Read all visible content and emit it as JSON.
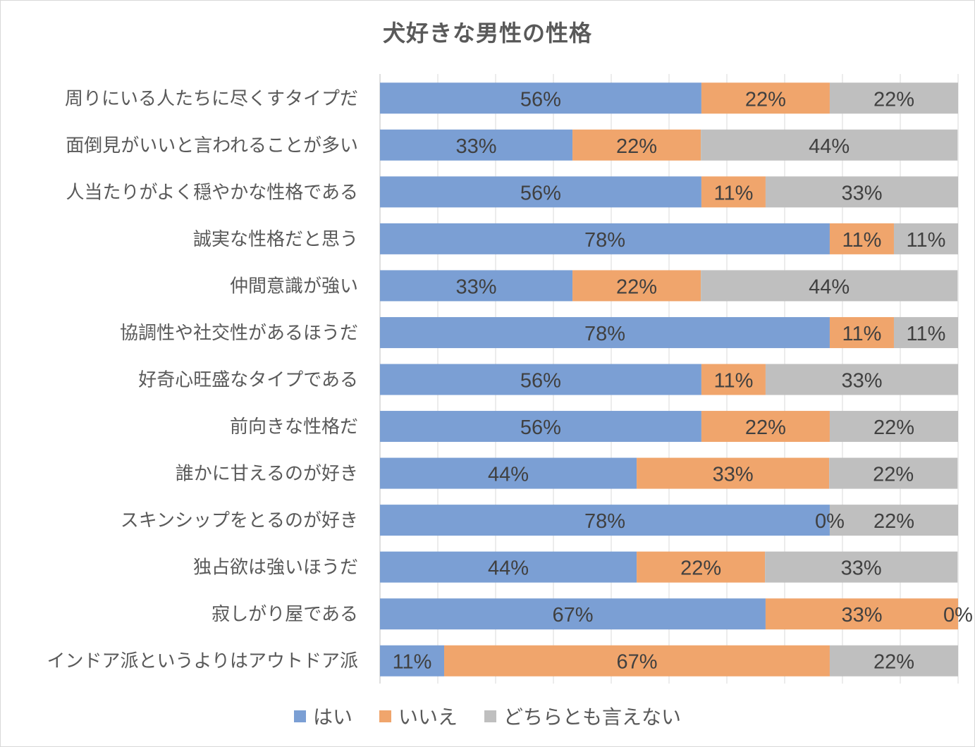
{
  "chart_data": {
    "type": "bar",
    "orientation": "horizontal",
    "stacked": "percent",
    "title": "犬好きな男性の性格",
    "xlabel": "",
    "ylabel": "",
    "xlim": [
      0,
      100
    ],
    "grid": true,
    "x_tick_labels_visible": false,
    "legend_position": "bottom",
    "categories": [
      "周りにいる人たちに尽くすタイプだ",
      "面倒見がいいと言われることが多い",
      "人当たりがよく穏やかな性格である",
      "誠実な性格だと思う",
      "仲間意識が強い",
      "協調性や社交性があるほうだ",
      "好奇心旺盛なタイプである",
      "前向きな性格だ",
      "誰かに甘えるのが好き",
      "スキンシップをとるのが好き",
      "独占欲は強いほうだ",
      "寂しがり屋である",
      "インドア派というよりはアウトドア派"
    ],
    "series": [
      {
        "name": "はい",
        "color": "#7b9fd4",
        "values": [
          55.6,
          33.3,
          55.6,
          77.8,
          33.3,
          77.8,
          55.6,
          55.6,
          44.4,
          77.8,
          44.4,
          66.7,
          11.1
        ],
        "labels": [
          "56%",
          "33%",
          "56%",
          "78%",
          "33%",
          "78%",
          "56%",
          "56%",
          "44%",
          "78%",
          "44%",
          "67%",
          "11%"
        ]
      },
      {
        "name": "いいえ",
        "color": "#f0a56c",
        "values": [
          22.2,
          22.2,
          11.1,
          11.1,
          22.2,
          11.1,
          11.1,
          22.2,
          33.3,
          0,
          22.2,
          33.3,
          66.7
        ],
        "labels": [
          "22%",
          "22%",
          "11%",
          "11%",
          "22%",
          "11%",
          "11%",
          "22%",
          "33%",
          "0%",
          "22%",
          "33%",
          "67%"
        ]
      },
      {
        "name": "どちらとも言えない",
        "color": "#bfbfbf",
        "values": [
          22.2,
          44.4,
          33.3,
          11.1,
          44.4,
          11.1,
          33.3,
          22.2,
          22.2,
          22.2,
          33.3,
          0,
          22.2
        ],
        "labels": [
          "22%",
          "44%",
          "33%",
          "11%",
          "44%",
          "11%",
          "33%",
          "22%",
          "22%",
          "22%",
          "33%",
          "0%",
          "22%"
        ]
      }
    ]
  }
}
